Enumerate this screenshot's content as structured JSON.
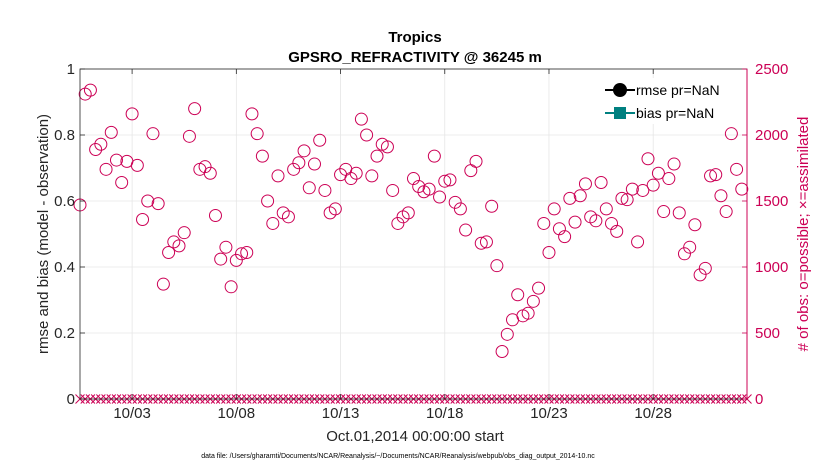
{
  "chart_data": {
    "type": "scatter",
    "title": "Tropics",
    "subtitle": "GPSRO_REFRACTIVITY @ 36245 m",
    "xlabel": "Oct.01,2014 00:00:00 start",
    "ylabel_left": "rmse and bias (model - observation)",
    "ylabel_right": "# of obs: o=possible; ×=assimilated",
    "footnote": "data file: /Users/gharamti/Documents/NCAR/Reanalysis/~/Documents/NCAR/Reanalysis/webpub/obs_diag_output_2014-10.nc",
    "xlim": [
      0.5,
      32.5
    ],
    "ylim_left": [
      0,
      1
    ],
    "ylim_right": [
      0,
      2500
    ],
    "grid": true,
    "x_ticks": [
      {
        "day": 3,
        "label": "10/03"
      },
      {
        "day": 8,
        "label": "10/08"
      },
      {
        "day": 13,
        "label": "10/13"
      },
      {
        "day": 18,
        "label": "10/18"
      },
      {
        "day": 23,
        "label": "10/23"
      },
      {
        "day": 28,
        "label": "10/28"
      }
    ],
    "y_ticks_left": [
      {
        "value": 0,
        "label": "0"
      },
      {
        "value": 0.2,
        "label": "0.2"
      },
      {
        "value": 0.4,
        "label": "0.4"
      },
      {
        "value": 0.6,
        "label": "0.6"
      },
      {
        "value": 0.8,
        "label": "0.8"
      },
      {
        "value": 1,
        "label": "1"
      }
    ],
    "y_ticks_right": [
      {
        "value": 0,
        "label": "0"
      },
      {
        "value": 500,
        "label": "500"
      },
      {
        "value": 1000,
        "label": "1000"
      },
      {
        "value": 1500,
        "label": "1500"
      },
      {
        "value": 2000,
        "label": "2000"
      },
      {
        "value": 2500,
        "label": "2500"
      }
    ],
    "legend": {
      "location": "top-right",
      "entries": [
        {
          "label": "rmse pr=NaN",
          "color": "#000000",
          "marker": "circle"
        },
        {
          "label": "bias pr=NaN",
          "color": "#008080",
          "marker": "square"
        }
      ]
    },
    "series": [
      {
        "name": "possible",
        "axis": "right",
        "marker": "circle-open",
        "color": "#cc0055",
        "x": [
          0.5,
          0.75,
          1,
          1.25,
          1.5,
          1.75,
          2,
          2.25,
          2.5,
          2.75,
          3,
          3.25,
          3.5,
          3.75,
          4,
          4.25,
          4.5,
          4.75,
          5,
          5.25,
          5.5,
          5.75,
          6,
          6.25,
          6.5,
          6.75,
          7,
          7.25,
          7.5,
          7.75,
          8,
          8.25,
          8.5,
          8.75,
          9,
          9.25,
          9.5,
          9.75,
          10,
          10.25,
          10.5,
          10.75,
          11,
          11.25,
          11.5,
          11.75,
          12,
          12.25,
          12.5,
          12.75,
          13,
          13.25,
          13.5,
          13.75,
          14,
          14.25,
          14.5,
          14.75,
          15,
          15.25,
          15.5,
          15.75,
          16,
          16.25,
          16.5,
          16.75,
          17,
          17.25,
          17.5,
          17.75,
          18,
          18.25,
          18.5,
          18.75,
          19,
          19.25,
          19.5,
          19.75,
          20,
          20.25,
          20.5,
          20.75,
          21,
          21.25,
          21.5,
          21.75,
          22,
          22.25,
          22.5,
          22.75,
          23,
          23.25,
          23.5,
          23.75,
          24,
          24.25,
          24.5,
          24.75,
          25,
          25.25,
          25.5,
          25.75,
          26,
          26.25,
          26.5,
          26.75,
          27,
          27.25,
          27.5,
          27.75,
          28,
          28.25,
          28.5,
          28.75,
          29,
          29.25,
          29.5,
          29.75,
          30,
          30.25,
          30.5,
          30.75,
          31,
          31.25,
          31.5,
          31.75,
          32,
          32.25
        ],
        "values": [
          1470,
          2310,
          2340,
          1890,
          1930,
          1740,
          2020,
          1810,
          1640,
          1800,
          2160,
          1770,
          1360,
          1500,
          2010,
          1480,
          870,
          1110,
          1190,
          1160,
          1260,
          1990,
          2200,
          1740,
          1760,
          1710,
          1390,
          1060,
          1150,
          850,
          1050,
          1100,
          1110,
          2160,
          2010,
          1840,
          1500,
          1330,
          1690,
          1410,
          1380,
          1740,
          1790,
          1880,
          1600,
          1780,
          1960,
          1580,
          1410,
          1440,
          1700,
          1740,
          1670,
          1710,
          2120,
          2000,
          1690,
          1840,
          1930,
          1910,
          1580,
          1330,
          1380,
          1410,
          1670,
          1610,
          1570,
          1590,
          1840,
          1530,
          1650,
          1660,
          1490,
          1440,
          1280,
          1730,
          1800,
          1180,
          1190,
          1460,
          1010,
          360,
          490,
          600,
          790,
          630,
          650,
          740,
          840,
          1330,
          1110,
          1440,
          1290,
          1230,
          1520,
          1340,
          1540,
          1630,
          1380,
          1350,
          1640,
          1440,
          1330,
          1270,
          1520,
          1510,
          1590,
          1190,
          1580,
          1820,
          1620,
          1710,
          1420,
          1670,
          1780,
          1410,
          1100,
          1150,
          1320,
          940,
          990,
          1690,
          1700,
          1540,
          1420,
          2010,
          1740,
          1590
        ]
      },
      {
        "name": "assimilated",
        "axis": "right",
        "marker": "x",
        "color": "#cc0055",
        "x": [
          0.5,
          0.75,
          1,
          1.25,
          1.5,
          1.75,
          2,
          2.25,
          2.5,
          2.75,
          3,
          3.25,
          3.5,
          3.75,
          4,
          4.25,
          4.5,
          4.75,
          5,
          5.25,
          5.5,
          5.75,
          6,
          6.25,
          6.5,
          6.75,
          7,
          7.25,
          7.5,
          7.75,
          8,
          8.25,
          8.5,
          8.75,
          9,
          9.25,
          9.5,
          9.75,
          10,
          10.25,
          10.5,
          10.75,
          11,
          11.25,
          11.5,
          11.75,
          12,
          12.25,
          12.5,
          12.75,
          13,
          13.25,
          13.5,
          13.75,
          14,
          14.25,
          14.5,
          14.75,
          15,
          15.25,
          15.5,
          15.75,
          16,
          16.25,
          16.5,
          16.75,
          17,
          17.25,
          17.5,
          17.75,
          18,
          18.25,
          18.5,
          18.75,
          19,
          19.25,
          19.5,
          19.75,
          20,
          20.25,
          20.5,
          20.75,
          21,
          21.25,
          21.5,
          21.75,
          22,
          22.25,
          22.5,
          22.75,
          23,
          23.25,
          23.5,
          23.75,
          24,
          24.25,
          24.5,
          24.75,
          25,
          25.25,
          25.5,
          25.75,
          26,
          26.25,
          26.5,
          26.75,
          27,
          27.25,
          27.5,
          27.75,
          28,
          28.25,
          28.5,
          28.75,
          29,
          29.25,
          29.5,
          29.75,
          30,
          30.25,
          30.5,
          30.75,
          31,
          31.25,
          31.5,
          31.75,
          32,
          32.25,
          32.5
        ],
        "values": [
          0,
          0,
          0,
          0,
          0,
          0,
          0,
          0,
          0,
          0,
          0,
          0,
          0,
          0,
          0,
          0,
          0,
          0,
          0,
          0,
          0,
          0,
          0,
          0,
          0,
          0,
          0,
          0,
          0,
          0,
          0,
          0,
          0,
          0,
          0,
          0,
          0,
          0,
          0,
          0,
          0,
          0,
          0,
          0,
          0,
          0,
          0,
          0,
          0,
          0,
          0,
          0,
          0,
          0,
          0,
          0,
          0,
          0,
          0,
          0,
          0,
          0,
          0,
          0,
          0,
          0,
          0,
          0,
          0,
          0,
          0,
          0,
          0,
          0,
          0,
          0,
          0,
          0,
          0,
          0,
          0,
          0,
          0,
          0,
          0,
          0,
          0,
          0,
          0,
          0,
          0,
          0,
          0,
          0,
          0,
          0,
          0,
          0,
          0,
          0,
          0,
          0,
          0,
          0,
          0,
          0,
          0,
          0,
          0,
          0,
          0,
          0,
          0,
          0,
          0,
          0,
          0,
          0,
          0,
          0,
          0,
          0,
          0,
          0,
          0,
          0,
          0,
          0,
          0
        ]
      }
    ],
    "colors": {
      "axis_right": "#cc0055",
      "axis_left": "#000000",
      "grid": "#e6e6e6",
      "bias": "#008080"
    }
  }
}
